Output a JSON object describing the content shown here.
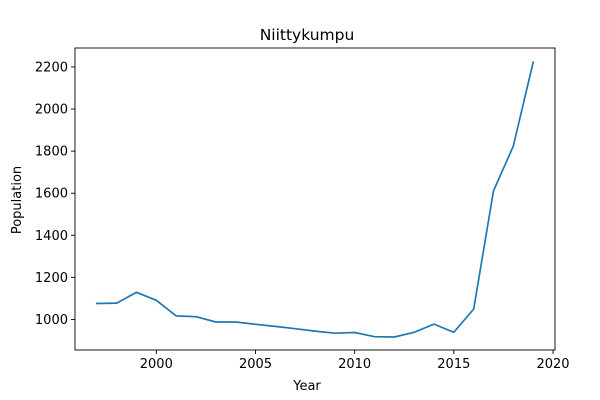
{
  "chart_data": {
    "type": "line",
    "title": "Niittykumpu",
    "xlabel": "Year",
    "ylabel": "Population",
    "xlim": [
      1995.9,
      2020.1
    ],
    "ylim": [
      855,
      2290
    ],
    "xticks": [
      2000,
      2005,
      2010,
      2015,
      2020
    ],
    "yticks": [
      1000,
      1200,
      1400,
      1600,
      1800,
      2000,
      2200
    ],
    "grid": false,
    "legend": "none",
    "series": [
      {
        "color": "#1f77b4",
        "x": [
          1997,
          1998,
          1999,
          2000,
          2001,
          2002,
          2003,
          2004,
          2005,
          2006,
          2007,
          2008,
          2009,
          2010,
          2011,
          2012,
          2013,
          2014,
          2015,
          2016,
          2017,
          2018,
          2019
        ],
        "y": [
          1076,
          1078,
          1129,
          1091,
          1017,
          1013,
          988,
          988,
          977,
          967,
          956,
          945,
          935,
          938,
          918,
          917,
          939,
          978,
          939,
          1050,
          1611,
          1824,
          2223
        ]
      }
    ]
  }
}
